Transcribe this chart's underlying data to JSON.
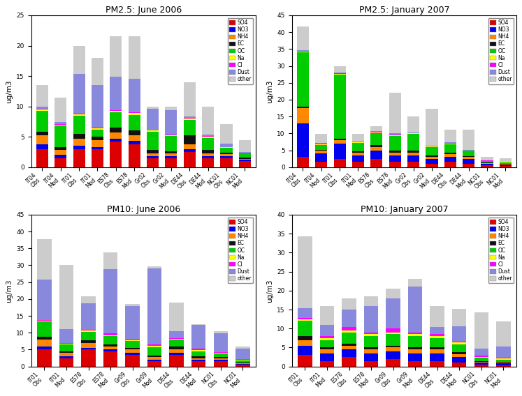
{
  "components": [
    "SO4",
    "NO3",
    "NH4",
    "EC",
    "OC",
    "Na",
    "Cl",
    "Dust",
    "other"
  ],
  "colors": [
    "#dd0000",
    "#0000ee",
    "#ff8800",
    "#111111",
    "#00cc00",
    "#ffff00",
    "#ff00ff",
    "#8888dd",
    "#cccccc"
  ],
  "pm25_june": {
    "title": "PM2.5: June 2006",
    "ylim": [
      0,
      25
    ],
    "yticks": [
      0,
      5,
      10,
      15,
      20,
      25
    ],
    "categories": [
      "IT04\nObs",
      "IT04\nMod",
      "IT01\nObs",
      "IT01\nMod",
      "ES78\nObs",
      "ES78\nMod",
      "Gr02\nObs",
      "Gr02\nMod",
      "DE44\nObs",
      "DE44\nMod",
      "NC01\nObs",
      "NC01\nMod"
    ],
    "data": {
      "SO4": [
        3.0,
        1.5,
        3.0,
        3.0,
        4.2,
        3.8,
        1.5,
        1.5,
        2.5,
        1.5,
        1.5,
        1.0
      ],
      "NO3": [
        0.8,
        0.5,
        0.5,
        0.3,
        0.5,
        0.5,
        0.3,
        0.3,
        0.5,
        0.3,
        0.3,
        0.2
      ],
      "NH4": [
        1.5,
        0.8,
        1.2,
        1.2,
        1.0,
        1.0,
        0.5,
        0.5,
        0.8,
        0.5,
        0.3,
        0.2
      ],
      "EC": [
        0.5,
        0.5,
        0.8,
        0.5,
        0.8,
        0.8,
        0.5,
        0.3,
        1.5,
        0.5,
        0.3,
        0.2
      ],
      "OC": [
        3.5,
        3.5,
        3.0,
        1.2,
        2.5,
        2.5,
        3.0,
        2.5,
        2.5,
        2.0,
        0.8,
        0.5
      ],
      "Na": [
        0.2,
        0.2,
        0.2,
        0.2,
        0.3,
        0.3,
        0.2,
        0.2,
        0.2,
        0.2,
        0.1,
        0.1
      ],
      "Cl": [
        0.1,
        0.1,
        0.1,
        0.1,
        0.1,
        0.1,
        0.1,
        0.1,
        0.1,
        0.1,
        0.05,
        0.05
      ],
      "Dust": [
        0.3,
        0.3,
        6.5,
        7.0,
        5.5,
        5.5,
        3.5,
        4.0,
        0.3,
        0.3,
        0.5,
        0.3
      ],
      "other": [
        3.6,
        4.1,
        4.7,
        4.5,
        6.6,
        7.0,
        0.4,
        0.6,
        5.6,
        4.6,
        3.2,
        1.9
      ]
    }
  },
  "pm25_jan": {
    "title": "PM2.5: January 2007",
    "ylim": [
      0,
      45
    ],
    "yticks": [
      0,
      5,
      10,
      15,
      20,
      25,
      30,
      35,
      40,
      45
    ],
    "categories": [
      "IT04\nObs",
      "IT04\nMod",
      "IT01\nObs",
      "IT01\nMod",
      "ES78\nObs",
      "ES78\nMod",
      "Gr02\nObs",
      "Gr02\nMod",
      "DE44\nObs",
      "DE44\nMod",
      "NC01\nObs",
      "NC01\nMod"
    ],
    "data": {
      "SO4": [
        3.0,
        1.5,
        2.5,
        1.5,
        2.5,
        1.5,
        1.5,
        1.0,
        1.5,
        1.0,
        0.5,
        0.3
      ],
      "NO3": [
        10.0,
        2.5,
        4.5,
        2.0,
        2.5,
        2.0,
        2.0,
        1.5,
        1.5,
        1.5,
        0.5,
        0.3
      ],
      "NH4": [
        4.5,
        0.8,
        1.0,
        0.8,
        1.0,
        0.8,
        0.8,
        0.6,
        0.8,
        0.5,
        0.2,
        0.2
      ],
      "EC": [
        0.5,
        0.3,
        0.5,
        0.3,
        0.5,
        0.5,
        0.5,
        0.3,
        0.5,
        0.3,
        0.1,
        0.1
      ],
      "OC": [
        16.0,
        1.5,
        19.0,
        2.5,
        3.5,
        4.5,
        5.0,
        2.5,
        2.5,
        1.5,
        0.5,
        0.5
      ],
      "Na": [
        0.3,
        0.2,
        0.2,
        0.2,
        0.2,
        0.2,
        0.2,
        0.2,
        0.2,
        0.1,
        0.1,
        0.1
      ],
      "Cl": [
        0.1,
        0.1,
        0.1,
        0.1,
        0.2,
        0.2,
        0.1,
        0.1,
        0.1,
        0.1,
        0.05,
        0.05
      ],
      "Dust": [
        0.2,
        0.2,
        0.2,
        0.2,
        0.3,
        0.3,
        0.2,
        0.2,
        0.2,
        0.2,
        0.1,
        0.1
      ],
      "other": [
        7.0,
        2.8,
        2.0,
        2.2,
        1.5,
        12.0,
        4.7,
        11.0,
        3.7,
        5.8,
        1.0,
        0.9
      ]
    }
  },
  "pm10_june": {
    "title": "PM10: June 2006",
    "ylim": [
      0,
      45
    ],
    "yticks": [
      0,
      5,
      10,
      15,
      20,
      25,
      30,
      35,
      40,
      45
    ],
    "categories": [
      "IT01\nObs",
      "IT01\nMod",
      "ES78\nObs",
      "ES78\nMod",
      "Gr09\nObs",
      "Gr09\nMod",
      "DE44\nObs",
      "DE44\nMod",
      "NC01\nObs",
      "NC01\nMod"
    ],
    "data": {
      "SO4": [
        5.0,
        2.5,
        5.0,
        4.5,
        3.5,
        1.5,
        3.5,
        1.5,
        1.5,
        0.5
      ],
      "NO3": [
        1.0,
        0.5,
        0.5,
        0.5,
        0.5,
        0.5,
        0.5,
        0.5,
        0.5,
        0.2
      ],
      "NH4": [
        2.0,
        1.0,
        1.5,
        1.0,
        1.0,
        0.8,
        1.0,
        0.5,
        0.5,
        0.3
      ],
      "EC": [
        0.8,
        0.5,
        0.8,
        0.5,
        0.5,
        0.5,
        1.0,
        0.5,
        0.3,
        0.2
      ],
      "OC": [
        4.5,
        2.0,
        2.5,
        2.5,
        2.0,
        2.5,
        2.0,
        1.5,
        1.0,
        0.5
      ],
      "Na": [
        0.3,
        0.3,
        0.3,
        0.3,
        0.3,
        0.3,
        0.3,
        0.3,
        0.3,
        0.3
      ],
      "Cl": [
        0.2,
        0.2,
        0.2,
        0.5,
        0.2,
        0.5,
        0.2,
        0.5,
        0.2,
        0.3
      ],
      "Dust": [
        12.0,
        4.0,
        8.0,
        19.0,
        10.0,
        22.5,
        2.0,
        7.0,
        5.5,
        3.0
      ],
      "other": [
        12.0,
        19.0,
        2.0,
        5.0,
        0.5,
        0.5,
        8.5,
        0.2,
        0.7,
        0.7
      ]
    }
  },
  "pm10_jan": {
    "title": "PM10: January 2007",
    "ylim": [
      0,
      40
    ],
    "yticks": [
      0,
      5,
      10,
      15,
      20,
      25,
      30,
      35,
      40
    ],
    "categories": [
      "IT01\nObs",
      "IT01\nMod",
      "ES78\nObs",
      "ES78\nMod",
      "Gr09\nObs",
      "Gr09\nMod",
      "DE44\nObs",
      "DE44\nMod",
      "NC01\nObs",
      "NC01\nMod"
    ],
    "data": {
      "SO4": [
        3.0,
        1.5,
        2.5,
        1.5,
        2.0,
        1.5,
        1.5,
        1.0,
        0.5,
        0.3
      ],
      "NO3": [
        2.5,
        2.0,
        2.0,
        2.0,
        2.0,
        2.0,
        2.0,
        1.5,
        0.5,
        0.5
      ],
      "NH4": [
        1.5,
        1.0,
        1.0,
        1.0,
        1.0,
        1.0,
        1.0,
        0.8,
        0.3,
        0.3
      ],
      "EC": [
        1.0,
        0.5,
        0.5,
        0.5,
        0.5,
        0.5,
        0.5,
        0.5,
        0.2,
        0.2
      ],
      "OC": [
        4.0,
        2.0,
        3.0,
        3.0,
        3.0,
        3.0,
        2.5,
        2.0,
        0.8,
        0.5
      ],
      "Na": [
        0.5,
        0.5,
        0.5,
        0.5,
        0.5,
        0.5,
        0.5,
        0.5,
        0.3,
        0.3
      ],
      "Cl": [
        0.3,
        0.5,
        1.0,
        0.5,
        1.0,
        0.5,
        0.5,
        0.3,
        0.2,
        0.2
      ],
      "Dust": [
        2.5,
        3.0,
        4.5,
        7.0,
        8.0,
        12.0,
        2.0,
        4.0,
        2.0,
        3.0
      ],
      "other": [
        19.0,
        5.0,
        3.0,
        2.5,
        2.5,
        2.0,
        5.5,
        4.5,
        9.5,
        6.5
      ]
    }
  }
}
